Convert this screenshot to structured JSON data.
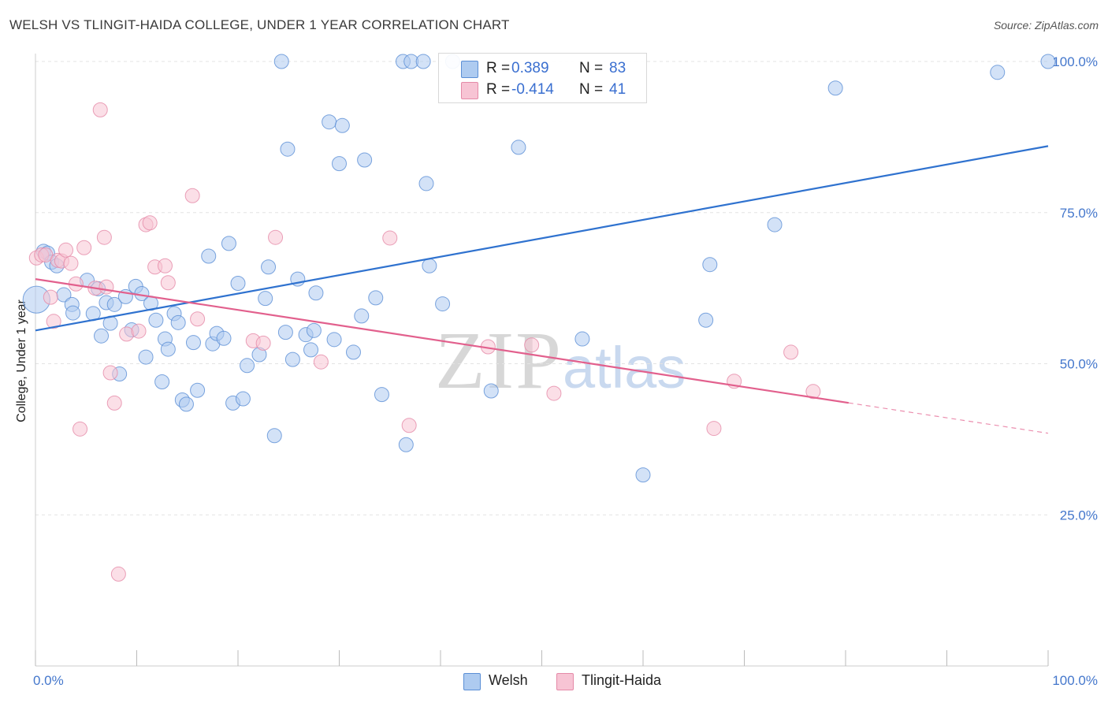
{
  "title": "WELSH VS TLINGIT-HAIDA COLLEGE, UNDER 1 YEAR CORRELATION CHART",
  "source": "Source: ZipAtlas.com",
  "watermark": {
    "zip": "ZIP",
    "atlas": "atlas"
  },
  "legend": {
    "welsh": {
      "r_label": "R =",
      "r_value": "0.389",
      "n_label": "N =",
      "n_value": "83"
    },
    "tlingit": {
      "r_label": "R =",
      "r_value": "-0.414",
      "n_label": "N =",
      "n_value": "41"
    }
  },
  "bottom_legend": {
    "welsh": "Welsh",
    "tlingit": "Tlingit-Haida"
  },
  "colors": {
    "welsh_fill": "#aecbf0",
    "welsh_stroke": "#5b8fd6",
    "welsh_line": "#2f72cf",
    "tlingit_fill": "#f7c4d4",
    "tlingit_stroke": "#e58aa8",
    "tlingit_line": "#e2608d",
    "tick_text": "#4477cc",
    "grid": "#e3e3e3"
  },
  "chart_data": {
    "type": "scatter",
    "title": "WELSH VS TLINGIT-HAIDA COLLEGE, UNDER 1 YEAR CORRELATION CHART",
    "xlabel": "",
    "ylabel": "College, Under 1 year",
    "xlim": [
      0,
      100
    ],
    "ylim": [
      0,
      100
    ],
    "x_tick_labels": [
      "0.0%",
      "100.0%"
    ],
    "y_ticks": [
      25,
      50,
      75,
      100
    ],
    "y_tick_labels": [
      "25.0%",
      "50.0%",
      "75.0%",
      "100.0%"
    ],
    "grid": true,
    "series": [
      {
        "name": "Welsh",
        "r": 0.389,
        "n": 83,
        "trend": {
          "x": [
            0,
            100
          ],
          "y": [
            55.5,
            86.0
          ],
          "dashed_from_x": null
        },
        "points": [
          [
            0.1,
            60.6,
            1.9
          ],
          [
            0.8,
            68.6,
            1.0
          ],
          [
            1.2,
            68.3,
            1.0
          ],
          [
            1.6,
            66.8,
            1.0
          ],
          [
            2.1,
            66.2,
            1.0
          ],
          [
            2.8,
            61.4,
            1.0
          ],
          [
            3.6,
            59.8,
            1.0
          ],
          [
            3.7,
            58.4,
            1.0
          ],
          [
            5.1,
            63.8,
            1.0
          ],
          [
            5.7,
            58.3,
            1.0
          ],
          [
            6.2,
            62.4,
            1.0
          ],
          [
            6.5,
            54.6,
            1.0
          ],
          [
            7.0,
            60.1,
            1.0
          ],
          [
            7.4,
            56.7,
            1.0
          ],
          [
            7.8,
            59.8,
            1.0
          ],
          [
            8.3,
            48.3,
            1.0
          ],
          [
            8.9,
            61.1,
            1.0
          ],
          [
            9.5,
            55.6,
            1.0
          ],
          [
            9.9,
            62.8,
            1.0
          ],
          [
            10.5,
            61.6,
            1.0
          ],
          [
            10.9,
            51.1,
            1.0
          ],
          [
            11.4,
            60.0,
            1.0
          ],
          [
            11.9,
            57.2,
            1.0
          ],
          [
            12.5,
            47.0,
            1.0
          ],
          [
            12.8,
            54.1,
            1.0
          ],
          [
            13.1,
            52.4,
            1.0
          ],
          [
            13.7,
            58.3,
            1.0
          ],
          [
            14.1,
            56.8,
            1.0
          ],
          [
            14.5,
            44.0,
            1.0
          ],
          [
            14.9,
            43.3,
            1.0
          ],
          [
            15.6,
            53.5,
            1.0
          ],
          [
            16.0,
            45.6,
            1.0
          ],
          [
            17.1,
            67.8,
            1.0
          ],
          [
            17.5,
            53.3,
            1.0
          ],
          [
            17.9,
            55.0,
            1.0
          ],
          [
            18.6,
            54.2,
            1.0
          ],
          [
            19.1,
            69.9,
            1.0
          ],
          [
            19.5,
            43.5,
            1.0
          ],
          [
            20.0,
            63.3,
            1.0
          ],
          [
            20.5,
            44.2,
            1.0
          ],
          [
            20.9,
            49.7,
            1.0
          ],
          [
            22.1,
            51.5,
            1.0
          ],
          [
            22.7,
            60.8,
            1.0
          ],
          [
            23.0,
            66.0,
            1.0
          ],
          [
            23.6,
            38.1,
            1.0
          ],
          [
            24.3,
            100.0,
            1.0
          ],
          [
            24.7,
            55.2,
            1.0
          ],
          [
            24.9,
            85.5,
            1.0
          ],
          [
            25.4,
            50.7,
            1.0
          ],
          [
            25.9,
            64.0,
            1.0
          ],
          [
            26.7,
            54.8,
            1.0
          ],
          [
            27.2,
            52.3,
            1.0
          ],
          [
            27.5,
            55.5,
            1.0
          ],
          [
            27.7,
            61.7,
            1.0
          ],
          [
            29.0,
            90.0,
            1.0
          ],
          [
            29.5,
            54.0,
            1.0
          ],
          [
            30.0,
            83.1,
            1.0
          ],
          [
            30.3,
            89.4,
            1.0
          ],
          [
            31.4,
            51.9,
            1.0
          ],
          [
            32.2,
            57.9,
            1.0
          ],
          [
            32.5,
            83.7,
            1.0
          ],
          [
            33.6,
            60.9,
            1.0
          ],
          [
            34.2,
            44.9,
            1.0
          ],
          [
            36.3,
            100.0,
            1.0
          ],
          [
            36.6,
            36.6,
            1.0
          ],
          [
            37.1,
            100.0,
            1.0
          ],
          [
            38.3,
            100.0,
            1.0
          ],
          [
            38.6,
            79.8,
            1.0
          ],
          [
            38.9,
            66.2,
            1.0
          ],
          [
            40.2,
            59.9,
            1.0
          ],
          [
            41.2,
            100.0,
            1.0
          ],
          [
            45.0,
            45.5,
            1.0
          ],
          [
            47.7,
            85.8,
            1.0
          ],
          [
            54.0,
            54.1,
            1.0
          ],
          [
            60.0,
            31.6,
            1.0
          ],
          [
            66.2,
            57.2,
            1.0
          ],
          [
            66.6,
            66.4,
            1.0
          ],
          [
            73.0,
            73.0,
            1.0
          ],
          [
            79.0,
            95.6,
            1.0
          ],
          [
            95.0,
            98.2,
            1.0
          ],
          [
            100.0,
            100.0,
            1.0
          ]
        ]
      },
      {
        "name": "Tlingit-Haida",
        "r": -0.414,
        "n": 41,
        "trend": {
          "x": [
            0,
            100
          ],
          "y": [
            64.0,
            38.5
          ],
          "dashed_from_x": 80.3
        },
        "points": [
          [
            0.1,
            67.5,
            1.0
          ],
          [
            0.6,
            68.0,
            1.0
          ],
          [
            1.0,
            68.0,
            1.0
          ],
          [
            1.5,
            61.0,
            1.0
          ],
          [
            1.8,
            57.0,
            1.0
          ],
          [
            2.2,
            67.1,
            1.0
          ],
          [
            2.6,
            67.0,
            1.0
          ],
          [
            3.0,
            68.8,
            1.0
          ],
          [
            3.5,
            66.6,
            1.0
          ],
          [
            4.0,
            63.2,
            1.0
          ],
          [
            4.4,
            39.2,
            1.0
          ],
          [
            4.8,
            69.2,
            1.0
          ],
          [
            5.9,
            62.5,
            1.0
          ],
          [
            6.4,
            92.0,
            1.0
          ],
          [
            6.8,
            70.9,
            1.0
          ],
          [
            7.0,
            62.7,
            1.0
          ],
          [
            7.4,
            48.5,
            1.0
          ],
          [
            7.8,
            43.5,
            1.0
          ],
          [
            8.2,
            15.2,
            1.0
          ],
          [
            9.0,
            54.9,
            1.0
          ],
          [
            10.2,
            55.4,
            1.0
          ],
          [
            10.9,
            73.0,
            1.0
          ],
          [
            11.3,
            73.3,
            1.0
          ],
          [
            11.8,
            66.0,
            1.0
          ],
          [
            12.8,
            66.2,
            1.0
          ],
          [
            13.1,
            63.4,
            1.0
          ],
          [
            15.5,
            77.8,
            1.0
          ],
          [
            16.0,
            57.4,
            1.0
          ],
          [
            21.5,
            53.8,
            1.0
          ],
          [
            22.5,
            53.4,
            1.0
          ],
          [
            23.7,
            70.9,
            1.0
          ],
          [
            28.2,
            50.3,
            1.0
          ],
          [
            35.0,
            70.8,
            1.0
          ],
          [
            36.9,
            39.8,
            1.0
          ],
          [
            44.7,
            52.8,
            1.0
          ],
          [
            49.0,
            53.1,
            1.0
          ],
          [
            51.2,
            45.1,
            1.0
          ],
          [
            67.0,
            39.3,
            1.0
          ],
          [
            69.0,
            47.1,
            1.0
          ],
          [
            74.6,
            51.9,
            1.0
          ],
          [
            76.8,
            45.4,
            1.0
          ]
        ]
      }
    ]
  }
}
